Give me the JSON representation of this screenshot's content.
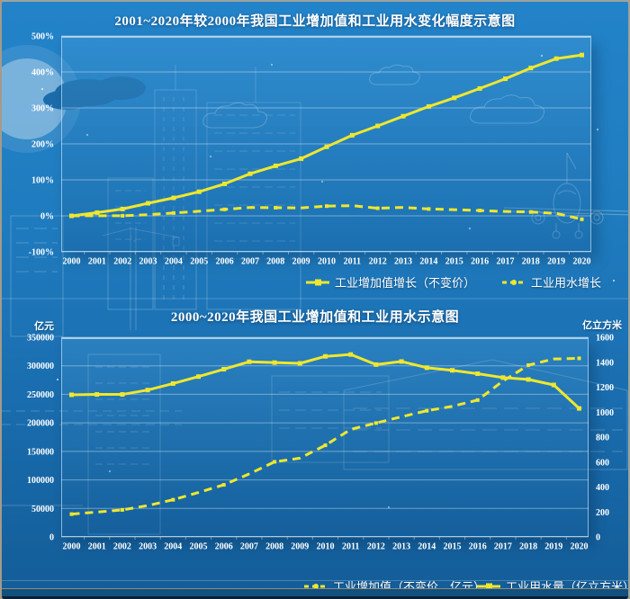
{
  "page": {
    "type": "infographic-dual-line-charts"
  },
  "colors": {
    "accent_yellow": "#efe72e",
    "background_top": "#2383c9",
    "background_bottom": "#135d98",
    "gridline": "rgba(255,255,255,0.38)",
    "text": "#ffffff"
  },
  "chart_data": [
    {
      "type": "line",
      "title": "2001~2020年较2000年我国工业增加值和工业用水变化幅度示意图",
      "x": [
        "2000",
        "2001",
        "2002",
        "2003",
        "2004",
        "2005",
        "2006",
        "2007",
        "2008",
        "2009",
        "2010",
        "2011",
        "2012",
        "2013",
        "2014",
        "2015",
        "2016",
        "2017",
        "2018",
        "2019",
        "2020"
      ],
      "ylim": [
        -100,
        500
      ],
      "ytick_step": 100,
      "ytick_format": "percent",
      "grid": true,
      "legend_position": "bottom",
      "series": [
        {
          "name": "工业增加值增长（不变价）",
          "style": "solid",
          "values": [
            0,
            9,
            19,
            35,
            50,
            67,
            89,
            117,
            139,
            159,
            192,
            224,
            250,
            277,
            304,
            328,
            354,
            381,
            411,
            437,
            447
          ]
        },
        {
          "name": "工业用水增长",
          "style": "dashed",
          "values": [
            0,
            0.3,
            0.3,
            3.3,
            7.9,
            12.8,
            18,
            23.3,
            22.7,
            22.1,
            27.1,
            28.4,
            21.2,
            23.5,
            19.1,
            17.2,
            14.8,
            12.1,
            10.8,
            6.9,
            -9.5
          ]
        }
      ]
    },
    {
      "type": "line",
      "title": "2000~2020年我国工业增加值和工业用水示意图",
      "x": [
        "2000",
        "2001",
        "2002",
        "2003",
        "2004",
        "2005",
        "2006",
        "2007",
        "2008",
        "2009",
        "2010",
        "2011",
        "2012",
        "2013",
        "2014",
        "2015",
        "2016",
        "2017",
        "2018",
        "2019",
        "2020"
      ],
      "left_axis": {
        "label": "亿元",
        "lim": [
          0,
          350000
        ],
        "tick_step": 50000
      },
      "right_axis": {
        "label": "亿立方米",
        "lim": [
          0,
          1600
        ],
        "tick_step": 200
      },
      "grid": true,
      "legend_position": "bottom",
      "series": [
        {
          "name": "工业增加值（不变价，亿元）",
          "style": "dashed",
          "axis": "left",
          "values": [
            40000,
            43600,
            47400,
            55000,
            65200,
            78000,
            91300,
            110500,
            131700,
            138100,
            160700,
            188500,
            199700,
            210700,
            221200,
            229000,
            239900,
            273300,
            301100,
            311900,
            313100
          ]
        },
        {
          "name": "工业用水量（亿立方米）",
          "style": "solid",
          "axis": "right",
          "values": [
            1139,
            1142,
            1142,
            1177,
            1229,
            1285,
            1344,
            1404,
            1397,
            1391,
            1447,
            1462,
            1381,
            1406,
            1356,
            1335,
            1308,
            1277,
            1262,
            1218,
            1030
          ]
        }
      ]
    }
  ]
}
